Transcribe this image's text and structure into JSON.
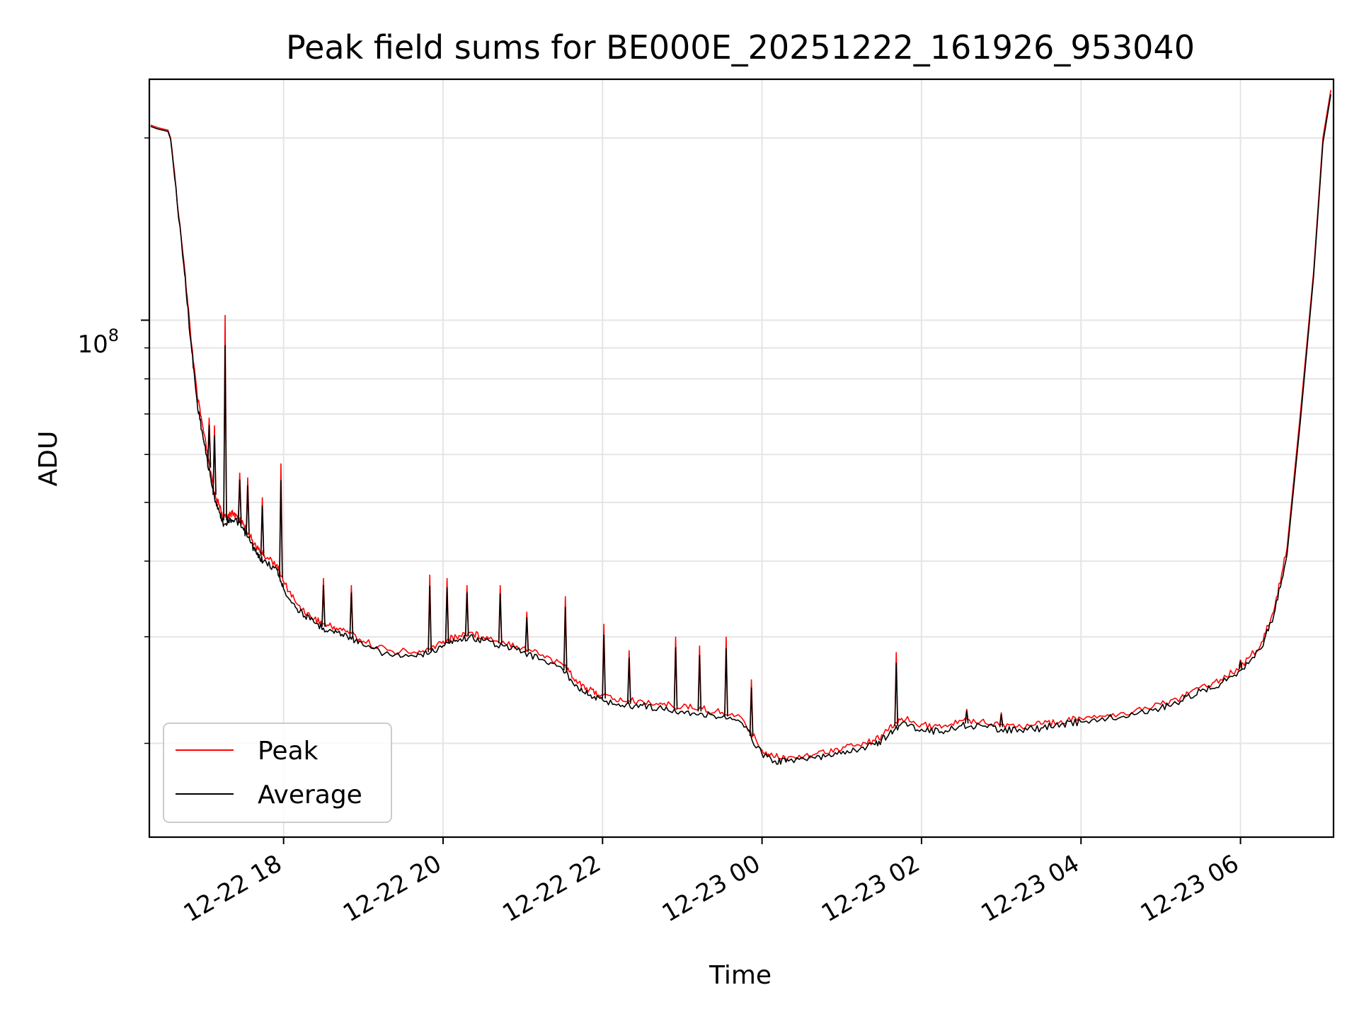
{
  "chart_data": {
    "type": "line",
    "title": "Peak field sums for BE000E_20251222_161926_953040",
    "xlabel": "Time",
    "ylabel": "ADU",
    "yscale": "log",
    "ylim": [
      14000000,
      250000000
    ],
    "xlim": [
      "2025-12-22 16:19",
      "2025-12-23 07:10"
    ],
    "x_ticks": [
      "12-22 18",
      "12-22 20",
      "12-22 22",
      "12-23 00",
      "12-23 02",
      "12-23 04",
      "12-23 06"
    ],
    "y_tick_major": {
      "base": "10",
      "exponent": "8",
      "value": 100000000
    },
    "grid": true,
    "legend": {
      "location": "lower-left",
      "entries": [
        "Peak",
        "Average"
      ]
    },
    "colors": {
      "Peak": "#ff0000",
      "Average": "#000000"
    },
    "series": [
      {
        "name": "Peak",
        "x": [
          "2025-12-22 16:20",
          "2025-12-22 16:25",
          "2025-12-22 16:33",
          "2025-12-22 16:35",
          "2025-12-22 16:45",
          "2025-12-22 16:50",
          "2025-12-22 16:55",
          "2025-12-22 17:00",
          "2025-12-22 17:05",
          "2025-12-22 17:08",
          "2025-12-22 17:12",
          "2025-12-22 17:15",
          "2025-12-22 17:20",
          "2025-12-22 17:25",
          "2025-12-22 17:30",
          "2025-12-22 17:35",
          "2025-12-22 17:40",
          "2025-12-22 17:45",
          "2025-12-22 17:55",
          "2025-12-22 18:00",
          "2025-12-22 18:10",
          "2025-12-22 18:20",
          "2025-12-22 18:30",
          "2025-12-22 18:40",
          "2025-12-22 18:50",
          "2025-12-22 19:00",
          "2025-12-22 19:20",
          "2025-12-22 19:40",
          "2025-12-22 19:50",
          "2025-12-22 20:00",
          "2025-12-22 20:10",
          "2025-12-22 20:20",
          "2025-12-22 20:30",
          "2025-12-22 20:45",
          "2025-12-22 21:00",
          "2025-12-22 21:15",
          "2025-12-22 21:30",
          "2025-12-22 21:40",
          "2025-12-22 21:50",
          "2025-12-22 22:00",
          "2025-12-22 22:15",
          "2025-12-22 22:30",
          "2025-12-22 22:45",
          "2025-12-22 23:00",
          "2025-12-22 23:15",
          "2025-12-22 23:30",
          "2025-12-22 23:45",
          "2025-12-23 00:00",
          "2025-12-23 00:10",
          "2025-12-23 00:20",
          "2025-12-23 00:40",
          "2025-12-23 00:55",
          "2025-12-23 01:10",
          "2025-12-23 01:25",
          "2025-12-23 01:35",
          "2025-12-23 01:45",
          "2025-12-23 02:00",
          "2025-12-23 02:15",
          "2025-12-23 02:30",
          "2025-12-23 02:45",
          "2025-12-23 03:00",
          "2025-12-23 03:15",
          "2025-12-23 03:30",
          "2025-12-23 03:45",
          "2025-12-23 04:00",
          "2025-12-23 04:20",
          "2025-12-23 04:40",
          "2025-12-23 05:00",
          "2025-12-23 05:15",
          "2025-12-23 05:30",
          "2025-12-23 05:45",
          "2025-12-23 06:00",
          "2025-12-23 06:15",
          "2025-12-23 06:25",
          "2025-12-23 06:35",
          "2025-12-23 06:45",
          "2025-12-23 06:55",
          "2025-12-23 07:02",
          "2025-12-23 07:08"
        ],
        "y": [
          210000000,
          208000000,
          206000000,
          200000000,
          125000000,
          95000000,
          75000000,
          65000000,
          56000000,
          52000000,
          49000000,
          47000000,
          48000000,
          47500000,
          46000000,
          44000000,
          42000000,
          41000000,
          39500000,
          37000000,
          34000000,
          32500000,
          31500000,
          31000000,
          30500000,
          29500000,
          28500000,
          28200000,
          28600000,
          29500000,
          30000000,
          30500000,
          30000000,
          29500000,
          28800000,
          28000000,
          27000000,
          25500000,
          24500000,
          24000000,
          23500000,
          23500000,
          23200000,
          23000000,
          22800000,
          22500000,
          22000000,
          19500000,
          19000000,
          19000000,
          19200000,
          19600000,
          19800000,
          20200000,
          21000000,
          22000000,
          21500000,
          21200000,
          21800000,
          21800000,
          21500000,
          21300000,
          21500000,
          21800000,
          22000000,
          22300000,
          22600000,
          23200000,
          23800000,
          24800000,
          25500000,
          26800000,
          29000000,
          33000000,
          42000000,
          70000000,
          120000000,
          200000000,
          240000000
        ]
      },
      {
        "name": "Average",
        "x": [
          "2025-12-22 16:20",
          "2025-12-22 16:25",
          "2025-12-22 16:33",
          "2025-12-22 16:35",
          "2025-12-22 16:45",
          "2025-12-22 16:50",
          "2025-12-22 16:55",
          "2025-12-22 17:00",
          "2025-12-22 17:05",
          "2025-12-22 17:08",
          "2025-12-22 17:12",
          "2025-12-22 17:15",
          "2025-12-22 17:20",
          "2025-12-22 17:25",
          "2025-12-22 17:30",
          "2025-12-22 17:35",
          "2025-12-22 17:40",
          "2025-12-22 17:45",
          "2025-12-22 17:55",
          "2025-12-22 18:00",
          "2025-12-22 18:10",
          "2025-12-22 18:20",
          "2025-12-22 18:30",
          "2025-12-22 18:40",
          "2025-12-22 18:50",
          "2025-12-22 19:00",
          "2025-12-22 19:20",
          "2025-12-22 19:40",
          "2025-12-22 19:50",
          "2025-12-22 20:00",
          "2025-12-22 20:10",
          "2025-12-22 20:20",
          "2025-12-22 20:30",
          "2025-12-22 20:45",
          "2025-12-22 21:00",
          "2025-12-22 21:15",
          "2025-12-22 21:30",
          "2025-12-22 21:40",
          "2025-12-22 21:50",
          "2025-12-22 22:00",
          "2025-12-22 22:15",
          "2025-12-22 22:30",
          "2025-12-22 22:45",
          "2025-12-22 23:00",
          "2025-12-22 23:15",
          "2025-12-22 23:30",
          "2025-12-22 23:45",
          "2025-12-23 00:00",
          "2025-12-23 00:10",
          "2025-12-23 00:20",
          "2025-12-23 00:40",
          "2025-12-23 00:55",
          "2025-12-23 01:10",
          "2025-12-23 01:25",
          "2025-12-23 01:35",
          "2025-12-23 01:45",
          "2025-12-23 02:00",
          "2025-12-23 02:15",
          "2025-12-23 02:30",
          "2025-12-23 02:45",
          "2025-12-23 03:00",
          "2025-12-23 03:15",
          "2025-12-23 03:30",
          "2025-12-23 03:45",
          "2025-12-23 04:00",
          "2025-12-23 04:20",
          "2025-12-23 04:40",
          "2025-12-23 05:00",
          "2025-12-23 05:15",
          "2025-12-23 05:30",
          "2025-12-23 05:45",
          "2025-12-23 06:00",
          "2025-12-23 06:15",
          "2025-12-23 06:25",
          "2025-12-23 06:35",
          "2025-12-23 06:45",
          "2025-12-23 06:55",
          "2025-12-23 07:02",
          "2025-12-23 07:08"
        ],
        "y": [
          209000000,
          207000000,
          205000000,
          199000000,
          123000000,
          93000000,
          73000000,
          63000000,
          55000000,
          51000000,
          48000000,
          46000000,
          47000000,
          46500000,
          45000000,
          43000000,
          41000000,
          40000000,
          38700000,
          36000000,
          33400000,
          32000000,
          31000000,
          30500000,
          30000000,
          29000000,
          28000000,
          27800000,
          28200000,
          29000000,
          29600000,
          30000000,
          29600000,
          29000000,
          28300000,
          27500000,
          26500000,
          25000000,
          24000000,
          23600000,
          23100000,
          23100000,
          22800000,
          22600000,
          22400000,
          22100000,
          21600000,
          19200000,
          18700000,
          18700000,
          18900000,
          19300000,
          19500000,
          19900000,
          20600000,
          21600000,
          21100000,
          20900000,
          21400000,
          21400000,
          21100000,
          21000000,
          21200000,
          21500000,
          21700000,
          22000000,
          22300000,
          22900000,
          23500000,
          24400000,
          25100000,
          26400000,
          28600000,
          32500000,
          41000000,
          68000000,
          118000000,
          196000000,
          236000000
        ]
      }
    ],
    "spikes": [
      {
        "series": "Peak",
        "x": "2025-12-22 17:16",
        "y": 102000000
      },
      {
        "series": "Peak",
        "x": "2025-12-22 17:04",
        "y": 69000000
      },
      {
        "series": "Peak",
        "x": "2025-12-22 17:08",
        "y": 67000000
      },
      {
        "series": "Peak",
        "x": "2025-12-22 17:27",
        "y": 56000000
      },
      {
        "series": "Peak",
        "x": "2025-12-22 17:33",
        "y": 55000000
      },
      {
        "series": "Peak",
        "x": "2025-12-22 17:44",
        "y": 51000000
      },
      {
        "series": "Peak",
        "x": "2025-12-22 17:58",
        "y": 58000000
      },
      {
        "series": "Peak",
        "x": "2025-12-22 18:30",
        "y": 37500000
      },
      {
        "series": "Peak",
        "x": "2025-12-22 18:51",
        "y": 36500000
      },
      {
        "series": "Peak",
        "x": "2025-12-22 19:50",
        "y": 38000000
      },
      {
        "series": "Peak",
        "x": "2025-12-22 20:03",
        "y": 37500000
      },
      {
        "series": "Peak",
        "x": "2025-12-22 20:18",
        "y": 36500000
      },
      {
        "series": "Peak",
        "x": "2025-12-22 20:43",
        "y": 36500000
      },
      {
        "series": "Peak",
        "x": "2025-12-22 21:03",
        "y": 33000000
      },
      {
        "series": "Peak",
        "x": "2025-12-22 21:32",
        "y": 35000000
      },
      {
        "series": "Peak",
        "x": "2025-12-22 22:01",
        "y": 31500000
      },
      {
        "series": "Peak",
        "x": "2025-12-22 22:20",
        "y": 28500000
      },
      {
        "series": "Peak",
        "x": "2025-12-22 22:55",
        "y": 30000000
      },
      {
        "series": "Peak",
        "x": "2025-12-22 23:13",
        "y": 29000000
      },
      {
        "series": "Peak",
        "x": "2025-12-22 23:33",
        "y": 30000000
      },
      {
        "series": "Peak",
        "x": "2025-12-22 23:52",
        "y": 25500000
      },
      {
        "series": "Peak",
        "x": "2025-12-23 01:41",
        "y": 28300000
      },
      {
        "series": "Peak",
        "x": "2025-12-23 02:34",
        "y": 22800000
      },
      {
        "series": "Peak",
        "x": "2025-12-23 03:00",
        "y": 22500000
      },
      {
        "series": "Peak",
        "x": "2025-12-23 06:00",
        "y": 27500000
      }
    ]
  }
}
